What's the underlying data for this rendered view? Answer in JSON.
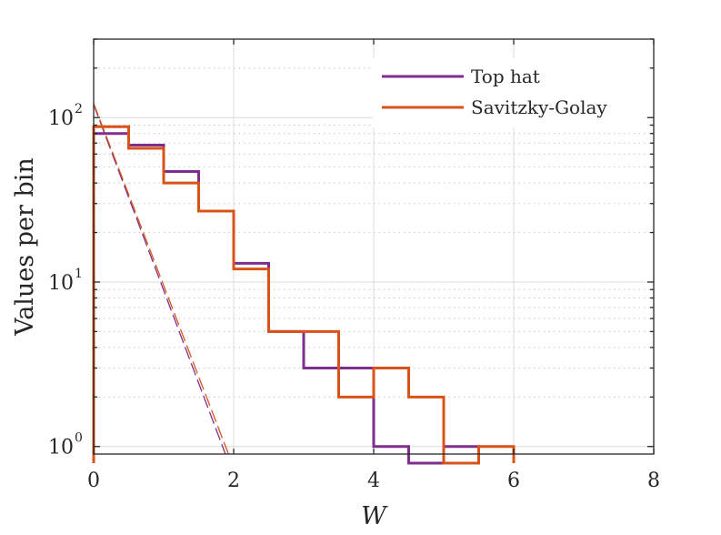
{
  "chart_data": {
    "type": "line",
    "subtype": "stairs-histogram",
    "title": "",
    "xlabel": "W",
    "ylabel": "Values per bin",
    "xlim": [
      0,
      8
    ],
    "ylim": [
      0.9,
      300
    ],
    "yscale": "log",
    "grid": true,
    "legend_position": "top-right",
    "x_ticks": [
      0,
      2,
      4,
      6,
      8
    ],
    "x_tick_labels": [
      "0",
      "2",
      "4",
      "6",
      "8"
    ],
    "y_ticks": [
      1,
      10,
      100
    ],
    "y_tick_labels": [
      {
        "base": "10",
        "exp": "0"
      },
      {
        "base": "10",
        "exp": "1"
      },
      {
        "base": "10",
        "exp": "2"
      }
    ],
    "bin_edges": [
      0,
      0.5,
      1,
      1.5,
      2,
      2.5,
      3,
      3.5,
      4,
      4.5,
      5,
      5.5,
      6
    ],
    "series": [
      {
        "name": "Top hat",
        "color": "#7e2f8e",
        "counts": [
          80,
          68,
          47,
          27,
          13,
          5,
          3,
          3,
          1,
          0,
          1,
          0
        ],
        "fit": {
          "intercept": 120,
          "decay_per_unit": 2.6
        }
      },
      {
        "name": "Savitzky-Golay",
        "color": "#d95319",
        "counts": [
          88,
          65,
          40,
          27,
          12,
          5,
          5,
          2,
          3,
          2,
          0,
          1
        ],
        "fit": {
          "intercept": 122,
          "decay_per_unit": 2.55
        }
      }
    ]
  }
}
